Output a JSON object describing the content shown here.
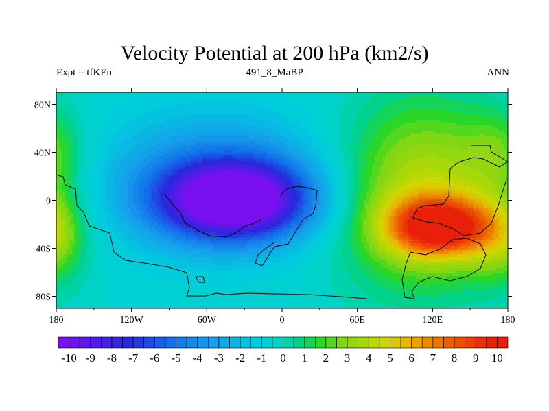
{
  "chart_data": {
    "type": "heatmap",
    "title": "Velocity Potential at 200 hPa (km2/s)",
    "subtitle_left": "Expt = tfKEu",
    "subtitle_center": "491_8_MaBP",
    "subtitle_right": "ANN",
    "x_ticks": [
      "180",
      "120W",
      "60W",
      "0",
      "60E",
      "120E",
      "180"
    ],
    "y_ticks": [
      "80N",
      "40N",
      "0",
      "40S",
      "80S"
    ],
    "xlim": [
      -180,
      180
    ],
    "ylim": [
      -90,
      90
    ],
    "colorbar": {
      "labels": [
        "-10",
        "-9",
        "-8",
        "-7",
        "-6",
        "-5",
        "-4",
        "-3",
        "-2",
        "-1",
        "0",
        "1",
        "2",
        "3",
        "4",
        "5",
        "6",
        "7",
        "8",
        "9",
        "10"
      ],
      "min": -10,
      "max": 10,
      "step": 0.5
    },
    "features": [
      {
        "lon": -38,
        "lat": 0,
        "value": -10,
        "spread_lon": 40,
        "spread_lat": 22
      },
      {
        "lon": -50,
        "lat": 15,
        "value": -4,
        "spread_lon": 70,
        "spread_lat": 40
      },
      {
        "lon": 125,
        "lat": -22,
        "value": 9,
        "spread_lon": 28,
        "spread_lat": 17
      },
      {
        "lon": 110,
        "lat": 5,
        "value": 5,
        "spread_lon": 50,
        "spread_lat": 55
      },
      {
        "lon": 175,
        "lat": -30,
        "value": 3,
        "spread_lon": 20,
        "spread_lat": 25
      },
      {
        "lon": 175,
        "lat": 40,
        "value": 2,
        "spread_lon": 20,
        "spread_lat": 25
      }
    ]
  },
  "colors": {
    "background_mid": "#00d2c8",
    "negative_extreme": "#7a10f0",
    "positive_extreme": "#e8200a",
    "continent_outline": "#000000"
  }
}
